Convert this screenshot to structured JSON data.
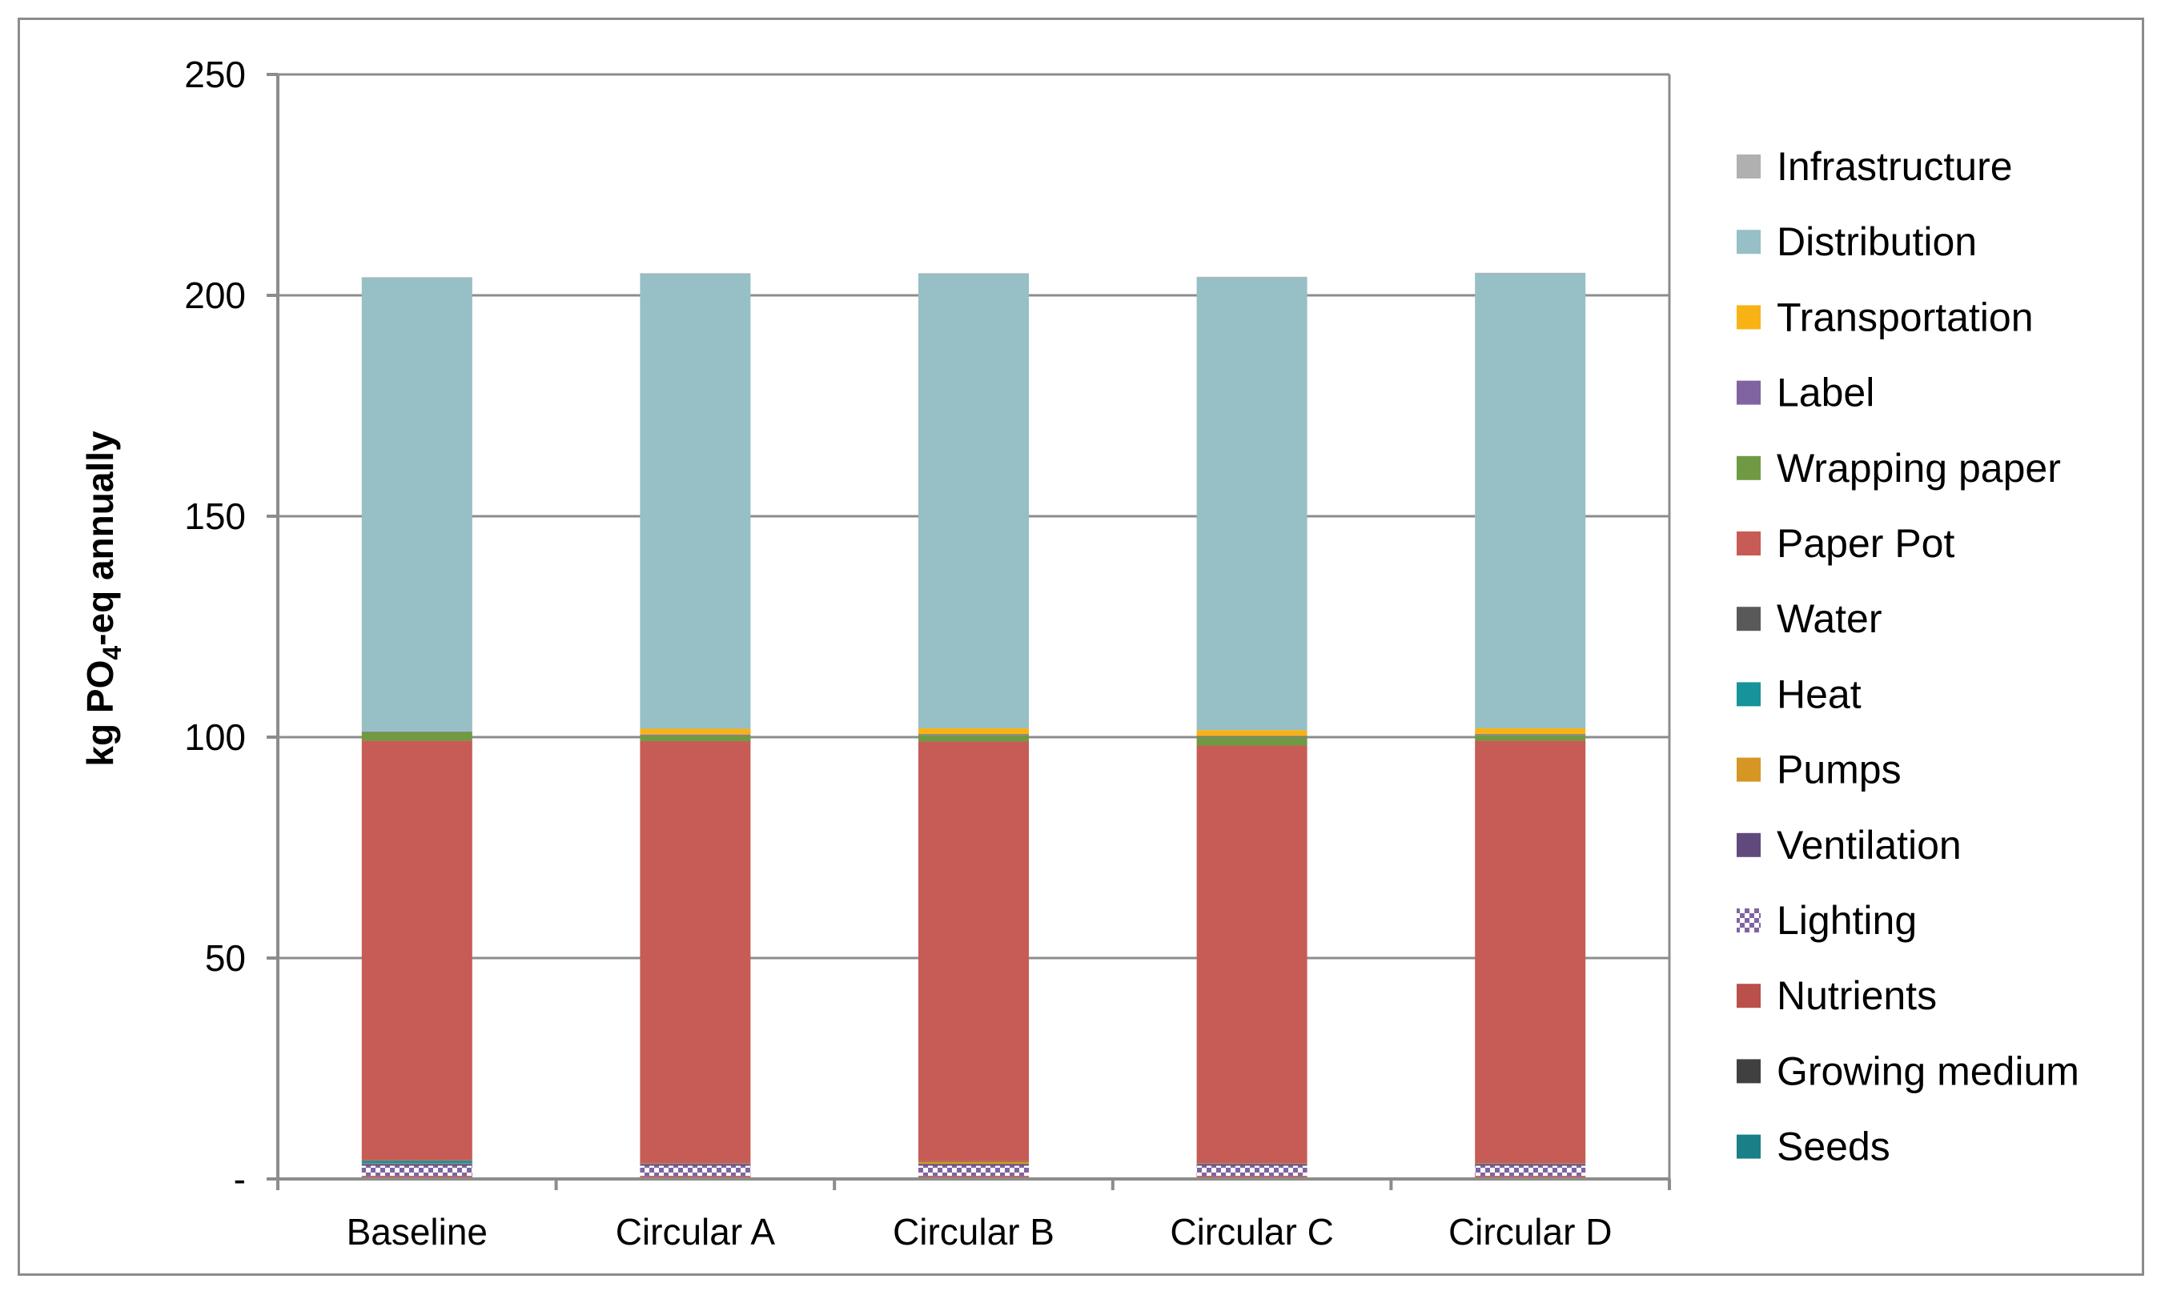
{
  "chart_data": {
    "type": "bar",
    "stacked": true,
    "categories": [
      "Baseline",
      "Circular A",
      "Circular B",
      "Circular C",
      "Circular D"
    ],
    "ylabel": "kg PO4-eq annually",
    "ylabel_parts": {
      "before": "kg PO",
      "subscript": "4",
      "after": "-eq annually"
    },
    "ylim": [
      0,
      250
    ],
    "yticks": [
      0,
      50,
      100,
      150,
      200,
      250
    ],
    "ytick_labels": [
      "-",
      "50",
      "100",
      "150",
      "200",
      "250"
    ],
    "grid": true,
    "legend_position": "right",
    "series": [
      {
        "name": "Seeds",
        "color": "#1a7f86",
        "pattern": "solid",
        "values": [
          0.2,
          0.2,
          0.2,
          0.2,
          0.2
        ]
      },
      {
        "name": "Growing medium",
        "color": "#404040",
        "pattern": "solid",
        "values": [
          0.2,
          0.2,
          0.2,
          0.2,
          0.2
        ]
      },
      {
        "name": "Nutrients",
        "color": "#b9504a",
        "pattern": "solid",
        "values": [
          0.3,
          0.3,
          0.3,
          0.3,
          0.3
        ]
      },
      {
        "name": "Lighting",
        "color": "#8064a2",
        "pattern": "checker",
        "values": [
          2.3,
          2.3,
          2.3,
          2.3,
          2.3
        ]
      },
      {
        "name": "Ventilation",
        "color": "#604a7b",
        "pattern": "solid",
        "values": [
          0.4,
          0.4,
          0.4,
          0.4,
          0.4
        ]
      },
      {
        "name": "Pumps",
        "color": "#d69624",
        "pattern": "solid",
        "values": [
          0.1,
          0.1,
          0.5,
          0.1,
          0.1
        ]
      },
      {
        "name": "Heat",
        "color": "#17939b",
        "pattern": "solid",
        "values": [
          0.6,
          0.0,
          0.0,
          0.0,
          0.0
        ]
      },
      {
        "name": "Water",
        "color": "#595959",
        "pattern": "solid",
        "values": [
          0.1,
          0.1,
          0.1,
          0.1,
          0.1
        ]
      },
      {
        "name": "Paper Pot",
        "color": "#c65c55",
        "pattern": "solid",
        "values": [
          95.0,
          95.5,
          95.0,
          94.5,
          95.6
        ]
      },
      {
        "name": "Wrapping paper",
        "color": "#6f9a43",
        "pattern": "solid",
        "values": [
          2.0,
          1.3,
          1.5,
          2.0,
          1.3
        ]
      },
      {
        "name": "Label",
        "color": "#8064a2",
        "pattern": "solid",
        "values": [
          0.1,
          0.2,
          0.2,
          0.2,
          0.2
        ]
      },
      {
        "name": "Transportation",
        "color": "#f9b215",
        "pattern": "solid",
        "values": [
          0.0,
          1.3,
          1.3,
          1.3,
          1.3
        ]
      },
      {
        "name": "Distribution",
        "color": "#96bfc6",
        "pattern": "solid",
        "values": [
          102.6,
          102.9,
          102.8,
          102.4,
          102.9
        ]
      },
      {
        "name": "Infrastructure",
        "color": "#b0b0b0",
        "pattern": "solid",
        "values": [
          0.2,
          0.2,
          0.2,
          0.2,
          0.2
        ]
      }
    ]
  }
}
